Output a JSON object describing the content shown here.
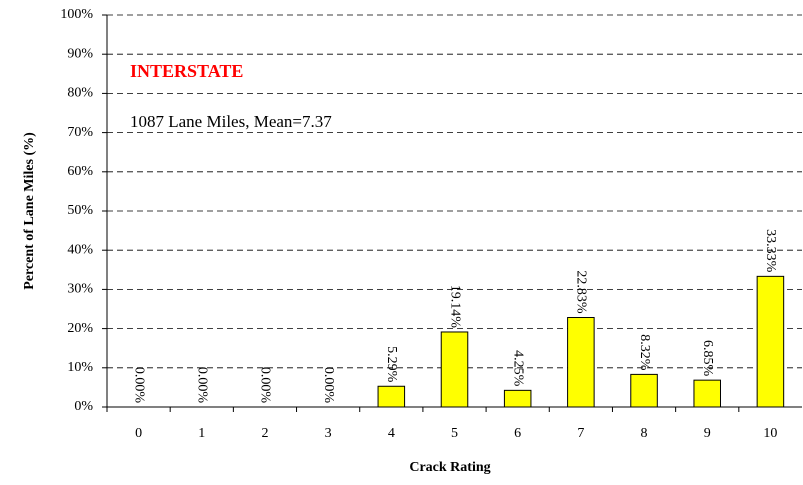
{
  "chart_data": {
    "type": "bar",
    "annotations": [
      {
        "text": "INTERSTATE",
        "color": "#ff0000"
      },
      {
        "text": "1087 Lane Miles, Mean=7.37",
        "color": "#000000"
      }
    ],
    "x_label": "Crack Rating",
    "y_label": "Percent of Lane Miles (%)",
    "categories": [
      "0",
      "1",
      "2",
      "3",
      "4",
      "5",
      "6",
      "7",
      "8",
      "9",
      "10"
    ],
    "values": [
      0,
      0,
      0,
      0,
      5.29,
      19.14,
      4.25,
      22.83,
      8.32,
      6.85,
      33.33
    ],
    "value_labels": [
      "0.00%",
      "0.00%",
      "0.00%",
      "0.00%",
      "5.29%",
      "19.14%",
      "4.25%",
      "22.83%",
      "8.32%",
      "6.85%",
      "33.33%"
    ],
    "color": "#ffff00",
    "ylim": [
      0,
      100
    ],
    "yticks": [
      {
        "value": 0,
        "label": "0%"
      },
      {
        "value": 10,
        "label": "10%"
      },
      {
        "value": 20,
        "label": "20%"
      },
      {
        "value": 30,
        "label": "30%"
      },
      {
        "value": 40,
        "label": "40%"
      },
      {
        "value": 50,
        "label": "50%"
      },
      {
        "value": 60,
        "label": "60%"
      },
      {
        "value": 70,
        "label": "70%"
      },
      {
        "value": 80,
        "label": "80%"
      },
      {
        "value": 90,
        "label": "90%"
      },
      {
        "value": 100,
        "label": "100%"
      }
    ],
    "grid": true
  }
}
